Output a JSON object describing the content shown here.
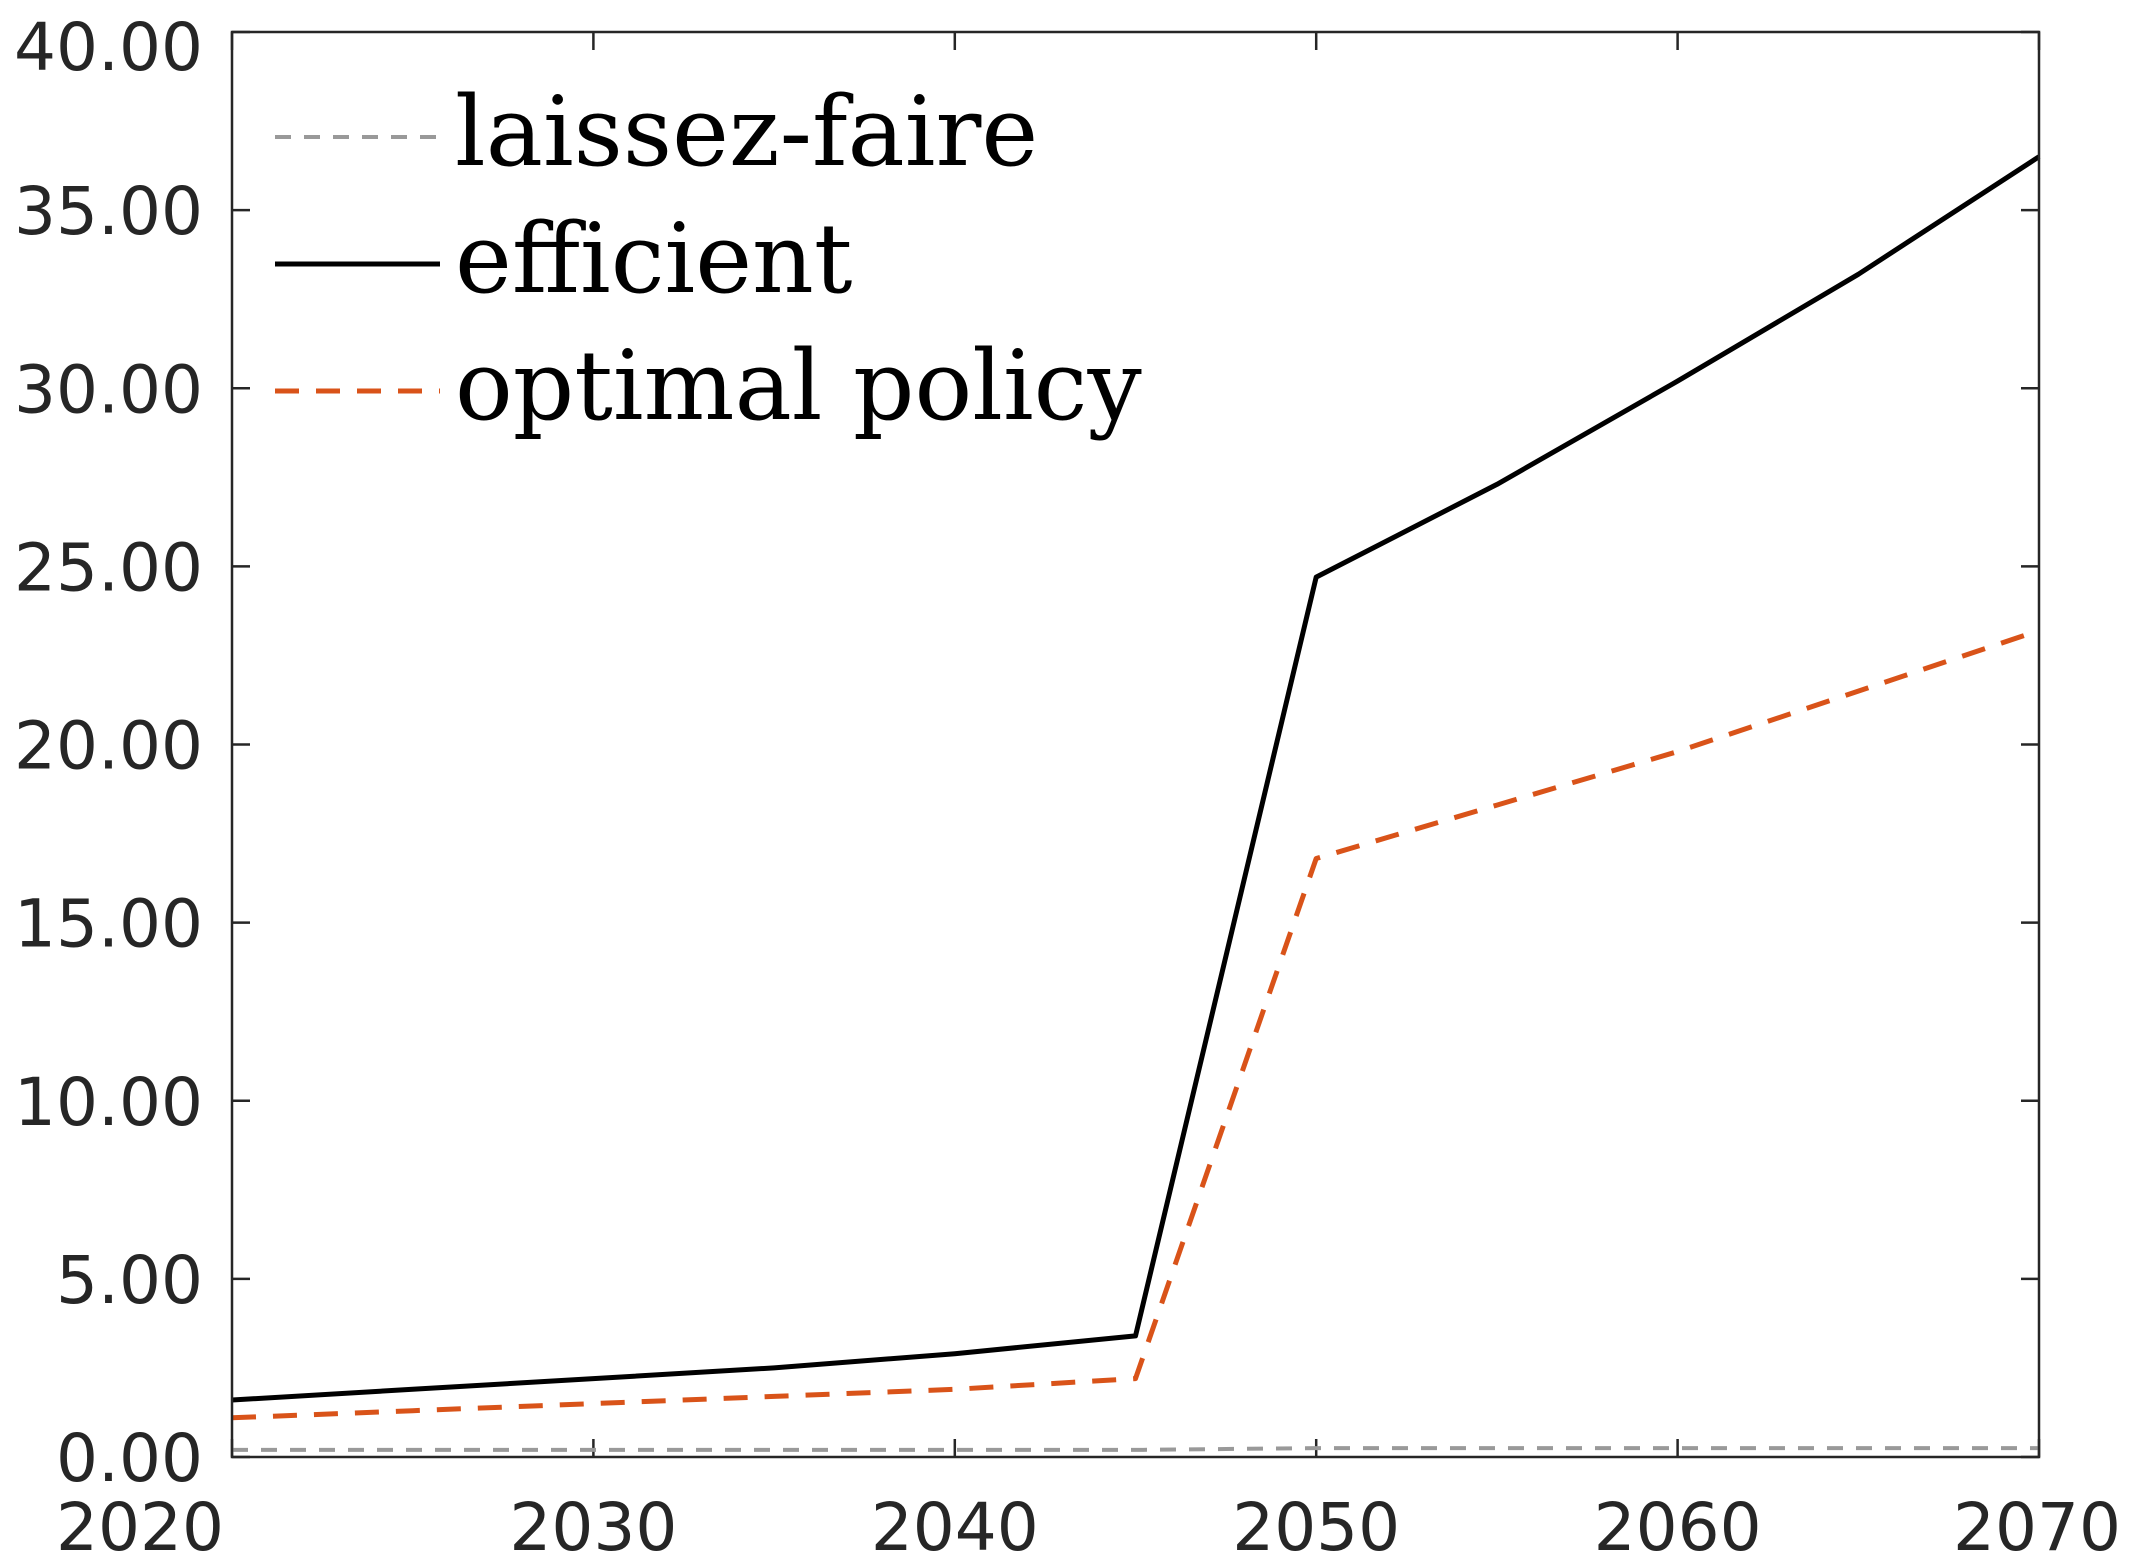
{
  "chart_data": {
    "type": "line",
    "title": "",
    "xlabel": "",
    "ylabel": "",
    "xlim": [
      2020,
      2070
    ],
    "ylim": [
      0,
      40
    ],
    "x_ticks": [
      2020,
      2030,
      2040,
      2050,
      2060,
      2070
    ],
    "y_ticks": [
      0,
      5,
      10,
      15,
      20,
      25,
      30,
      35,
      40
    ],
    "y_tick_labels": [
      "0.00",
      "5.00",
      "10.00",
      "15.00",
      "20.00",
      "25.00",
      "30.00",
      "35.00",
      "40.00"
    ],
    "grid": false,
    "legend_position": "top-left",
    "series": [
      {
        "name": "laissez-faire",
        "color": "#999999",
        "style": "dashed",
        "x": [
          2020,
          2025,
          2030,
          2035,
          2040,
          2045,
          2050,
          2055,
          2060,
          2065,
          2070
        ],
        "y": [
          0.2,
          0.2,
          0.2,
          0.2,
          0.2,
          0.2,
          0.25,
          0.25,
          0.25,
          0.25,
          0.25
        ]
      },
      {
        "name": "efficient",
        "color": "#000000",
        "style": "solid",
        "x": [
          2020,
          2025,
          2030,
          2035,
          2040,
          2045,
          2050,
          2055,
          2060,
          2065,
          2070
        ],
        "y": [
          1.6,
          1.9,
          2.2,
          2.5,
          2.9,
          3.4,
          24.7,
          27.3,
          30.2,
          33.2,
          36.5
        ]
      },
      {
        "name": "optimal policy",
        "color": "#D95319",
        "style": "dashed",
        "x": [
          2020,
          2025,
          2030,
          2035,
          2040,
          2045,
          2050,
          2055,
          2060,
          2065,
          2070
        ],
        "y": [
          1.1,
          1.3,
          1.5,
          1.7,
          1.9,
          2.2,
          16.8,
          18.3,
          19.8,
          21.5,
          23.2
        ]
      }
    ]
  }
}
